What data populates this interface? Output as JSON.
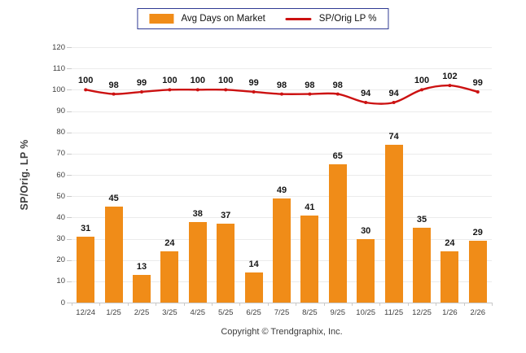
{
  "legend": {
    "bar_label": "Avg Days on Market",
    "line_label": "SP/Orig LP %"
  },
  "footer": "Copyright © Trendgraphix, Inc.",
  "colors": {
    "bar": "#f08c18",
    "line": "#cc1111",
    "legend_border": "#2f3a93",
    "grid": "#ebebeb",
    "axis": "#c6c6c6",
    "data_label": "#161616",
    "tick_label": "#3f3f3f"
  },
  "chart_data": {
    "type": "bar",
    "categories": [
      "12/24",
      "1/25",
      "2/25",
      "3/25",
      "4/25",
      "5/25",
      "6/25",
      "7/25",
      "8/25",
      "9/25",
      "10/25",
      "11/25",
      "12/25",
      "1/26",
      "2/26"
    ],
    "series": [
      {
        "name": "Avg Days on Market",
        "type": "bar",
        "values": [
          31,
          45,
          13,
          24,
          38,
          37,
          14,
          49,
          41,
          65,
          30,
          74,
          35,
          24,
          29
        ]
      },
      {
        "name": "SP/Orig LP %",
        "type": "line",
        "values": [
          100,
          98,
          99,
          100,
          100,
          100,
          99,
          98,
          98,
          98,
          94,
          94,
          100,
          102,
          99
        ]
      }
    ],
    "title": "",
    "xlabel": "",
    "ylabel": "SP/Orig. LP %",
    "ylim": [
      0,
      120
    ],
    "ytick_step": 10,
    "grid": true,
    "legend_position": "top"
  }
}
